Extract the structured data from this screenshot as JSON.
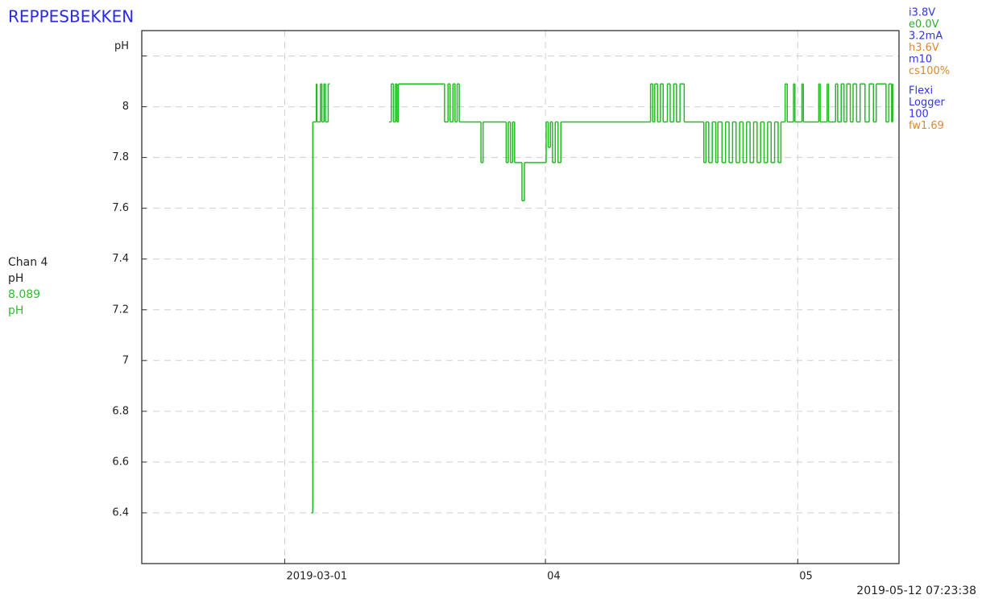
{
  "chart_data": {
    "type": "step",
    "title": "REPPESBEKKEN",
    "xlim": [
      "2019-02-12T00:00",
      "2019-05-13T01:00"
    ],
    "xticks": [
      {
        "value": "2019-03-01T00:00",
        "label": "2019-03-01"
      },
      {
        "value": "2019-04-01T00:00",
        "label": "04"
      },
      {
        "value": "2019-05-01T00:00",
        "label": "05"
      }
    ],
    "ylim": [
      6.2,
      8.3
    ],
    "yticks": [
      6.4,
      6.6,
      6.8,
      7,
      7.2,
      7.4,
      7.6,
      7.8,
      8,
      {
        "value": 8.2,
        "label": "pH"
      }
    ],
    "grid": true,
    "series": [
      {
        "name": "Chan 4",
        "color": "#22bb22",
        "x": [
          "2019-03-04T04:00",
          "2019-03-04T08:00",
          "2019-03-04T18:00",
          "2019-03-04T20:00",
          "2019-03-05T06:00",
          "2019-03-05T10:00",
          "2019-03-05T16:00",
          "2019-03-05T20:00",
          "2019-03-06T04:00",
          "2019-03-06T06:00",
          "2019-03-09T00:00",
          "2019-03-13T10:00",
          "2019-03-13T16:00",
          "2019-03-13T22:00",
          "2019-03-14T04:00",
          "2019-03-14T08:00",
          "2019-03-14T12:00",
          "2019-03-20T00:00",
          "2019-03-20T10:00",
          "2019-03-20T16:00",
          "2019-03-21T00:00",
          "2019-03-21T06:00",
          "2019-03-21T12:00",
          "2019-03-21T18:00",
          "2019-03-24T08:00",
          "2019-03-24T14:00",
          "2019-03-27T08:00",
          "2019-03-27T14:00",
          "2019-03-27T20:00",
          "2019-03-28T02:00",
          "2019-03-28T08:00",
          "2019-03-29T05:00",
          "2019-03-29T12:00",
          "2019-04-01T02:00",
          "2019-04-01T08:00",
          "2019-04-01T14:00",
          "2019-04-01T20:00",
          "2019-04-02T04:00",
          "2019-04-02T12:00",
          "2019-04-02T20:00",
          "2019-04-13T12:00",
          "2019-04-13T18:00",
          "2019-04-14T00:00",
          "2019-04-14T08:00",
          "2019-04-14T16:00",
          "2019-04-15T00:00",
          "2019-04-15T12:00",
          "2019-04-15T20:00",
          "2019-04-16T06:00",
          "2019-04-16T14:00",
          "2019-04-17T00:00",
          "2019-04-17T12:00",
          "2019-04-19T20:00",
          "2019-04-20T02:00",
          "2019-04-20T10:00",
          "2019-04-20T20:00",
          "2019-04-21T06:00",
          "2019-04-21T12:00",
          "2019-04-22T00:00",
          "2019-04-22T10:00",
          "2019-04-22T20:00",
          "2019-04-23T06:00",
          "2019-04-23T16:00",
          "2019-04-24T02:00",
          "2019-04-24T12:00",
          "2019-04-24T22:00",
          "2019-04-25T08:00",
          "2019-04-25T18:00",
          "2019-04-26T04:00",
          "2019-04-26T14:00",
          "2019-04-27T00:00",
          "2019-04-27T10:00",
          "2019-04-27T20:00",
          "2019-04-28T06:00",
          "2019-04-28T16:00",
          "2019-04-29T00:00",
          "2019-04-29T12:00",
          "2019-04-29T18:00",
          "2019-04-30T12:00",
          "2019-04-30T16:00",
          "2019-05-01T12:00",
          "2019-05-01T16:00",
          "2019-05-03T12:00",
          "2019-05-03T16:00",
          "2019-05-04T12:00",
          "2019-05-04T16:00",
          "2019-05-05T12:00",
          "2019-05-05T18:00",
          "2019-05-06T04:00",
          "2019-05-06T12:00",
          "2019-05-06T20:00",
          "2019-05-07T06:00",
          "2019-05-07T14:00",
          "2019-05-08T00:00",
          "2019-05-08T10:00",
          "2019-05-09T00:00",
          "2019-05-09T12:00",
          "2019-05-10T00:00",
          "2019-05-10T08:00",
          "2019-05-11T12:00",
          "2019-05-11T20:00",
          "2019-05-12T04:00",
          "2019-05-12T07:00"
        ],
        "values": [
          6.4,
          7.94,
          8.09,
          7.94,
          8.09,
          7.94,
          8.09,
          7.94,
          8.09,
          8.09,
          null,
          7.94,
          8.09,
          7.94,
          8.09,
          7.94,
          8.09,
          7.94,
          8.09,
          7.94,
          8.09,
          7.94,
          8.09,
          7.94,
          7.78,
          7.94,
          7.78,
          7.94,
          7.78,
          7.94,
          7.78,
          7.63,
          7.78,
          7.94,
          7.84,
          7.94,
          7.78,
          7.94,
          7.78,
          7.94,
          8.09,
          7.94,
          8.09,
          7.94,
          8.09,
          7.94,
          8.09,
          7.94,
          8.09,
          7.94,
          8.09,
          7.94,
          7.78,
          7.94,
          7.78,
          7.94,
          7.78,
          7.94,
          7.78,
          7.94,
          7.78,
          7.94,
          7.78,
          7.94,
          7.78,
          7.94,
          7.78,
          7.94,
          7.78,
          7.94,
          7.78,
          7.94,
          7.78,
          7.94,
          7.78,
          7.94,
          8.09,
          7.94,
          8.09,
          7.94,
          8.09,
          7.94,
          8.09,
          7.94,
          8.09,
          7.94,
          8.09,
          7.94,
          8.09,
          7.94,
          8.09,
          7.94,
          8.09,
          7.94,
          8.09,
          7.94,
          8.09,
          7.94,
          8.09,
          7.94,
          8.09,
          7.94,
          8.089
        ]
      }
    ]
  },
  "side_panel": {
    "channel": "Chan 4",
    "unit": "pH",
    "reading": "8.089",
    "reading_unit": "pH"
  },
  "status": [
    {
      "text": "i3.8V",
      "color": "#3333ee"
    },
    {
      "text": "e0.0V",
      "color": "#33aa33"
    },
    {
      "text": "3.2mA",
      "color": "#3333ee"
    },
    {
      "text": "h3.6V",
      "color": "#dd8833"
    },
    {
      "text": "m10",
      "color": "#3333ee"
    },
    {
      "text": "cs100%",
      "color": "#dd8833"
    },
    {
      "text": "Flexi",
      "color": "#3333ee"
    },
    {
      "text": "Logger",
      "color": "#3333ee"
    },
    {
      "text": "100",
      "color": "#3333ee"
    },
    {
      "text": "fw1.69",
      "color": "#dd8833"
    }
  ],
  "timestamp": "2019-05-12 07:23:38"
}
